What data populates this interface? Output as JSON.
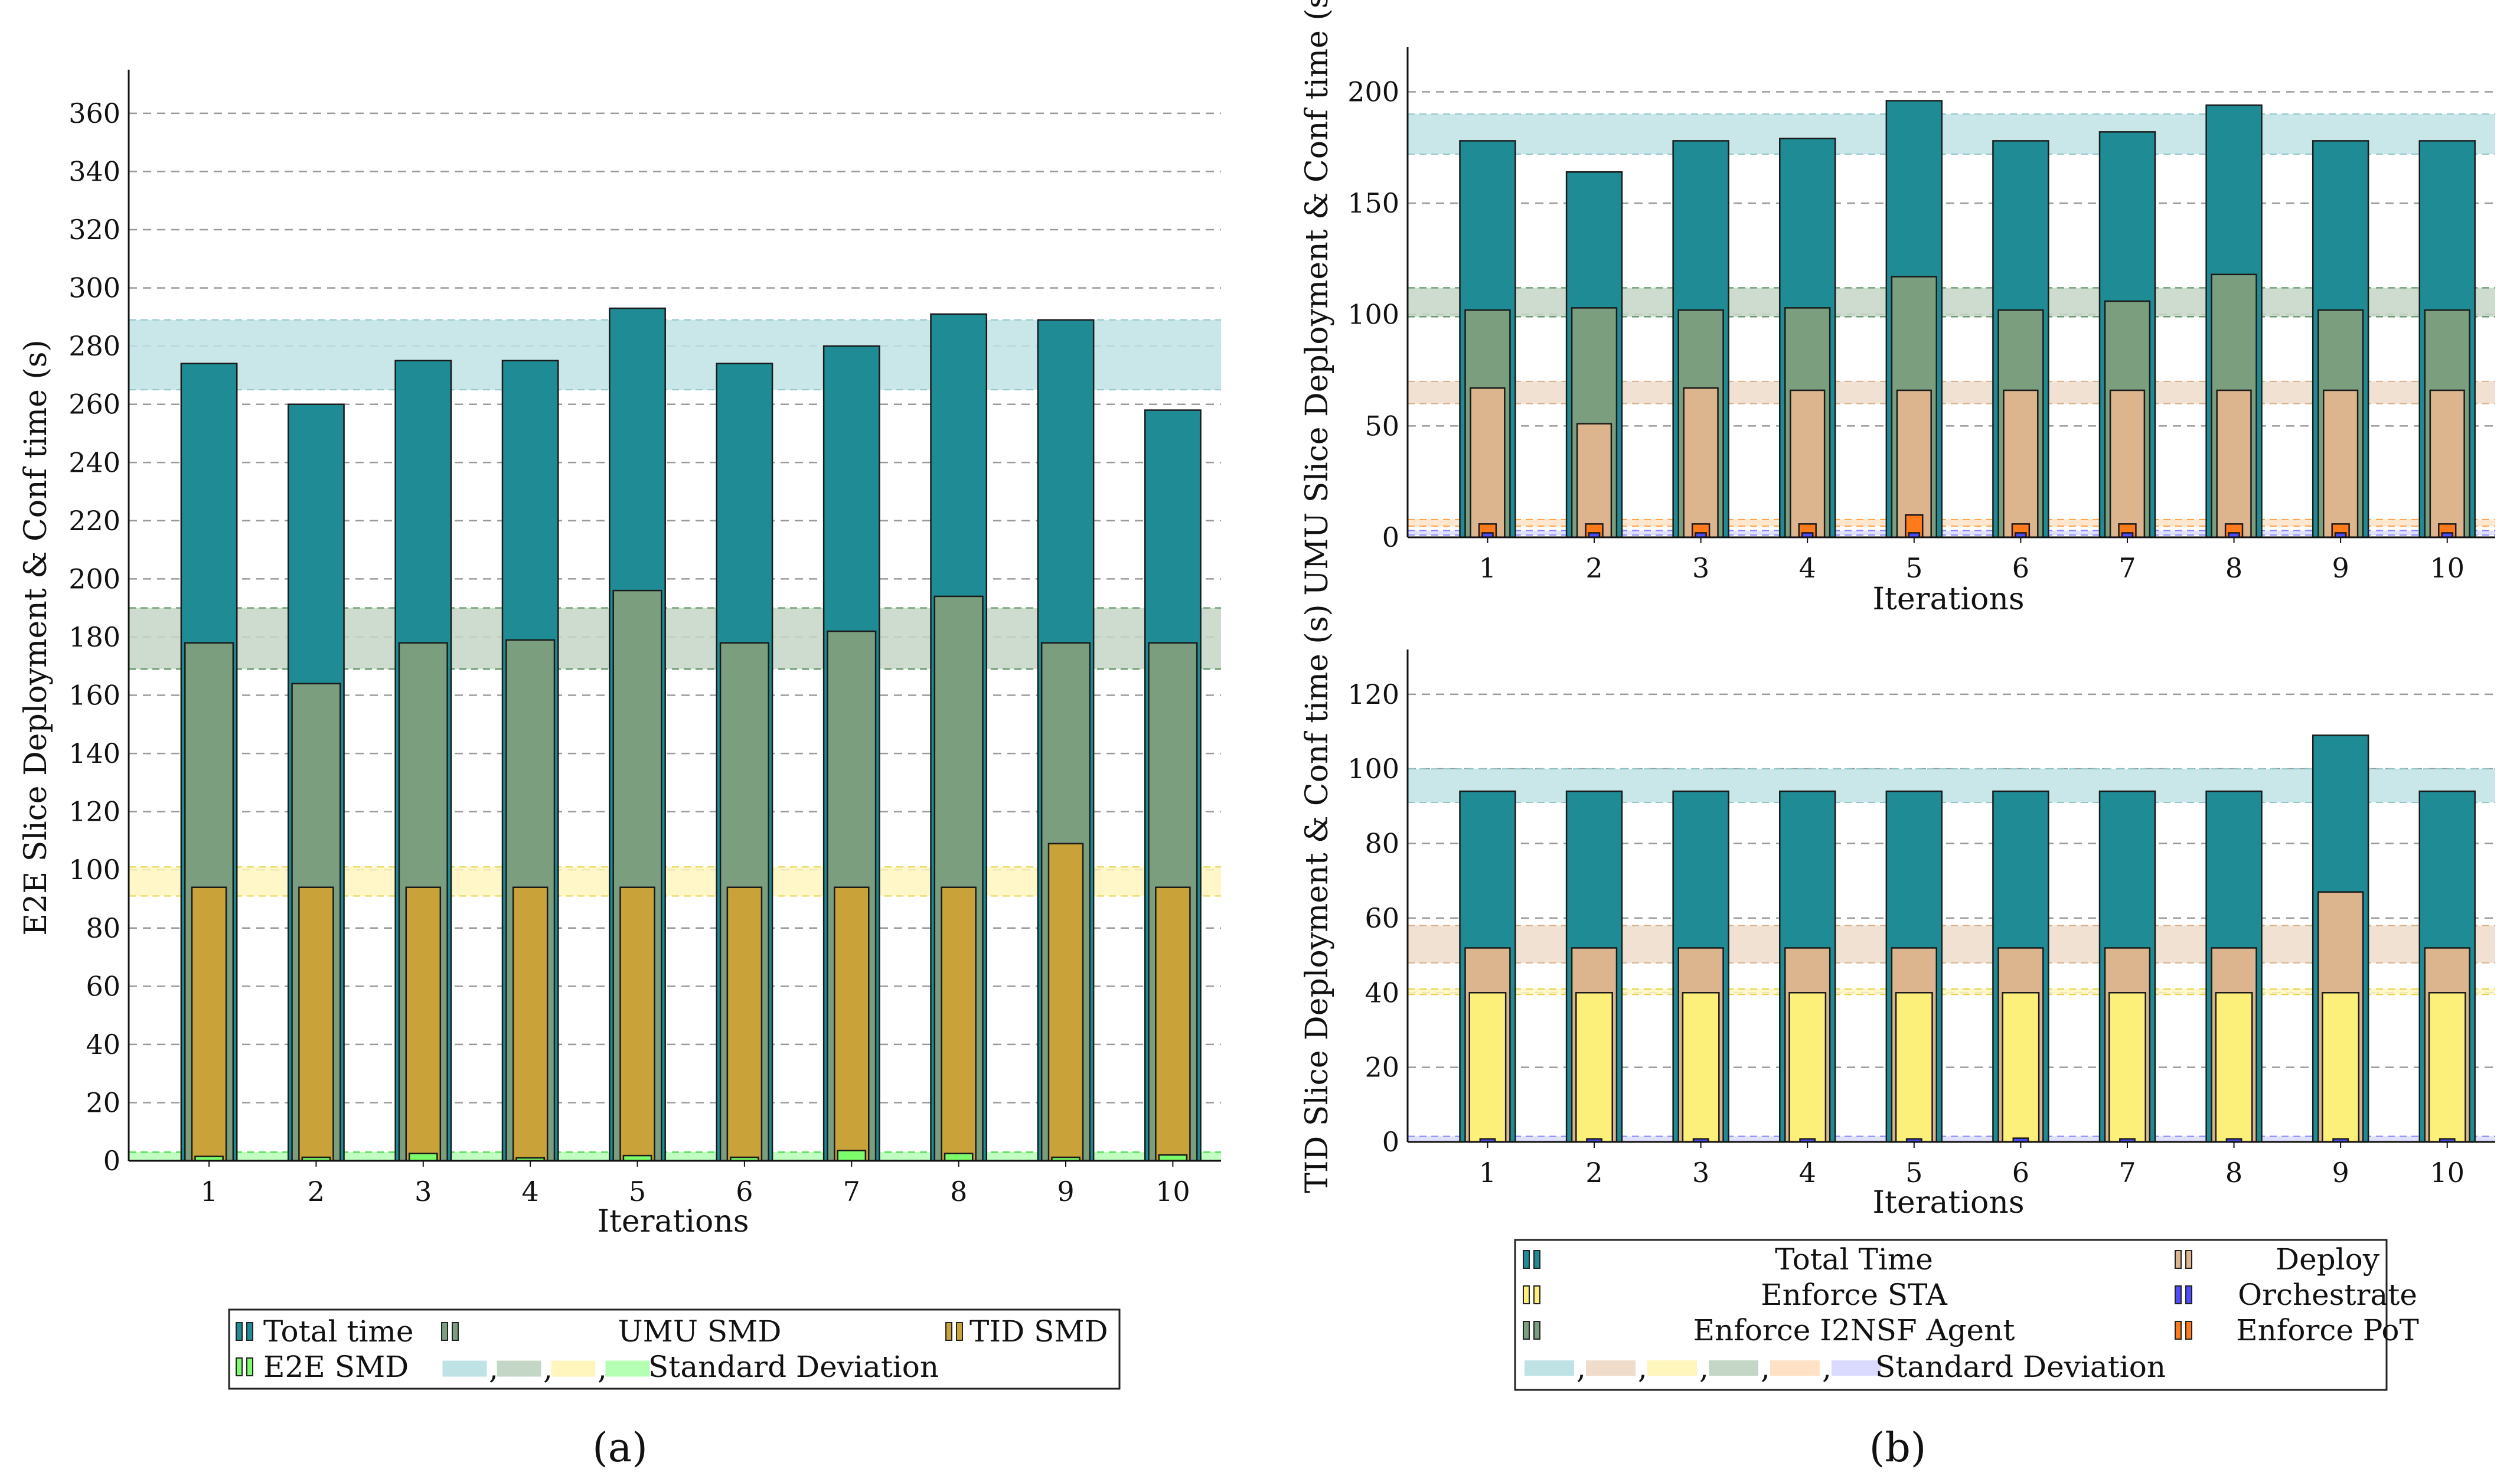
{
  "colors": {
    "total": "#1f8c95",
    "umu": "#7a9e7e",
    "tid": "#c9a23a",
    "e2e": "#7cfc6a",
    "deploy": "#dcb48e",
    "sta": "#fdf07a",
    "i2nsf": "#7a9e7e",
    "orchestrate": "#4d4dff",
    "pot": "#ff7a1a",
    "band_total": "#bfe2e5",
    "band_umu": "#c4d6c5",
    "band_tid": "#fff6bd",
    "band_e2e": "#b5ffb5",
    "band_deploy": "#efdccb",
    "band_i2nsf": "#c4d6c5",
    "band_pot": "#ffe2c6",
    "band_orch": "#dadaff"
  },
  "captions": {
    "a": "(a)",
    "b": "(b)"
  },
  "chart_data": [
    {
      "id": "a",
      "type": "bar",
      "xlabel": "Iterations",
      "ylabel": "E2E Slice Deployment & Conf time (s)",
      "ylim": [
        0,
        375
      ],
      "yticks": [
        0,
        20,
        40,
        60,
        80,
        100,
        120,
        140,
        160,
        180,
        200,
        220,
        240,
        260,
        280,
        300,
        320,
        340,
        360
      ],
      "categories": [
        "1",
        "2",
        "3",
        "4",
        "5",
        "6",
        "7",
        "8",
        "9",
        "10"
      ],
      "series": [
        {
          "name": "Total time",
          "values": [
            274,
            260,
            275,
            275,
            293,
            274,
            280,
            291,
            289,
            258
          ]
        },
        {
          "name": "UMU SMD",
          "values": [
            178,
            164,
            178,
            179,
            196,
            178,
            182,
            194,
            178,
            178
          ]
        },
        {
          "name": "TID SMD",
          "values": [
            94,
            94,
            94,
            94,
            94,
            94,
            94,
            94,
            109,
            94
          ]
        },
        {
          "name": "E2E SMD",
          "values": [
            1.5,
            1.2,
            2.5,
            1.0,
            1.8,
            1.2,
            3.5,
            2.5,
            1.2,
            2.0
          ]
        }
      ],
      "std_bands": [
        {
          "series": "Total time",
          "range": [
            265,
            289
          ]
        },
        {
          "series": "UMU SMD",
          "range": [
            169,
            190
          ]
        },
        {
          "series": "TID SMD",
          "range": [
            91,
            101
          ]
        },
        {
          "series": "E2E SMD",
          "range": [
            0,
            3
          ]
        }
      ],
      "legend": {
        "total": "Total time",
        "umu": "UMU SMD",
        "tid": "TID SMD",
        "e2e": "E2E SMD",
        "sep": ",",
        "std": "Standard Deviation"
      }
    },
    {
      "id": "b-top",
      "type": "bar",
      "xlabel": "Iterations",
      "ylabel": "UMU Slice Deployment & Conf time (s)",
      "ylim": [
        0,
        220
      ],
      "yticks": [
        0,
        50,
        100,
        150,
        200
      ],
      "categories": [
        "1",
        "2",
        "3",
        "4",
        "5",
        "6",
        "7",
        "8",
        "9",
        "10"
      ],
      "series": [
        {
          "name": "Total Time",
          "values": [
            178,
            164,
            178,
            179,
            196,
            178,
            182,
            194,
            178,
            178
          ]
        },
        {
          "name": "Enforce I2NSF Agent",
          "values": [
            102,
            103,
            102,
            103,
            117,
            102,
            106,
            118,
            102,
            102
          ]
        },
        {
          "name": "Deploy",
          "values": [
            67,
            51,
            67,
            66,
            66,
            66,
            66,
            66,
            66,
            66
          ]
        },
        {
          "name": "Enforce PoT",
          "values": [
            6,
            6,
            6,
            6,
            10,
            6,
            6,
            6,
            6,
            6
          ]
        },
        {
          "name": "Orchestrate",
          "values": [
            2,
            2,
            2,
            2,
            2,
            2,
            2,
            2,
            2,
            2
          ]
        }
      ],
      "std_bands": [
        {
          "series": "Total Time",
          "range": [
            172,
            190
          ]
        },
        {
          "series": "Enforce I2NSF Agent",
          "range": [
            99,
            112
          ]
        },
        {
          "series": "Deploy",
          "range": [
            60,
            70
          ]
        },
        {
          "series": "Enforce PoT",
          "range": [
            5,
            8
          ]
        },
        {
          "series": "Orchestrate",
          "range": [
            1,
            3
          ]
        }
      ]
    },
    {
      "id": "b-bottom",
      "type": "bar",
      "xlabel": "Iterations",
      "ylabel": "TID Slice Deployment & Conf time (s)",
      "ylim": [
        0,
        132
      ],
      "yticks": [
        0,
        20,
        40,
        60,
        80,
        100,
        120
      ],
      "categories": [
        "1",
        "2",
        "3",
        "4",
        "5",
        "6",
        "7",
        "8",
        "9",
        "10"
      ],
      "series": [
        {
          "name": "Total Time",
          "values": [
            94,
            94,
            94,
            94,
            94,
            94,
            94,
            94,
            109,
            94
          ]
        },
        {
          "name": "Deploy",
          "values": [
            52,
            52,
            52,
            52,
            52,
            52,
            52,
            52,
            67,
            52
          ]
        },
        {
          "name": "Enforce STA",
          "values": [
            40,
            40,
            40,
            40,
            40,
            40,
            40,
            40,
            40,
            40
          ]
        },
        {
          "name": "Orchestrate",
          "values": [
            0.8,
            0.8,
            0.8,
            0.8,
            0.8,
            1.0,
            0.8,
            0.8,
            0.8,
            0.8
          ]
        }
      ],
      "std_bands": [
        {
          "series": "Total Time",
          "range": [
            91,
            100
          ]
        },
        {
          "series": "Deploy",
          "range": [
            48,
            58
          ]
        },
        {
          "series": "Enforce STA",
          "range": [
            39.5,
            41
          ]
        },
        {
          "series": "Orchestrate",
          "range": [
            0,
            1.5
          ]
        }
      ],
      "legend": {
        "total": "Total Time",
        "deploy": "Deploy",
        "sta": "Enforce STA",
        "orchestrate": "Orchestrate",
        "i2nsf": "Enforce I2NSF Agent",
        "pot": "Enforce PoT",
        "sep": ",",
        "std": "Standard Deviation"
      }
    }
  ]
}
